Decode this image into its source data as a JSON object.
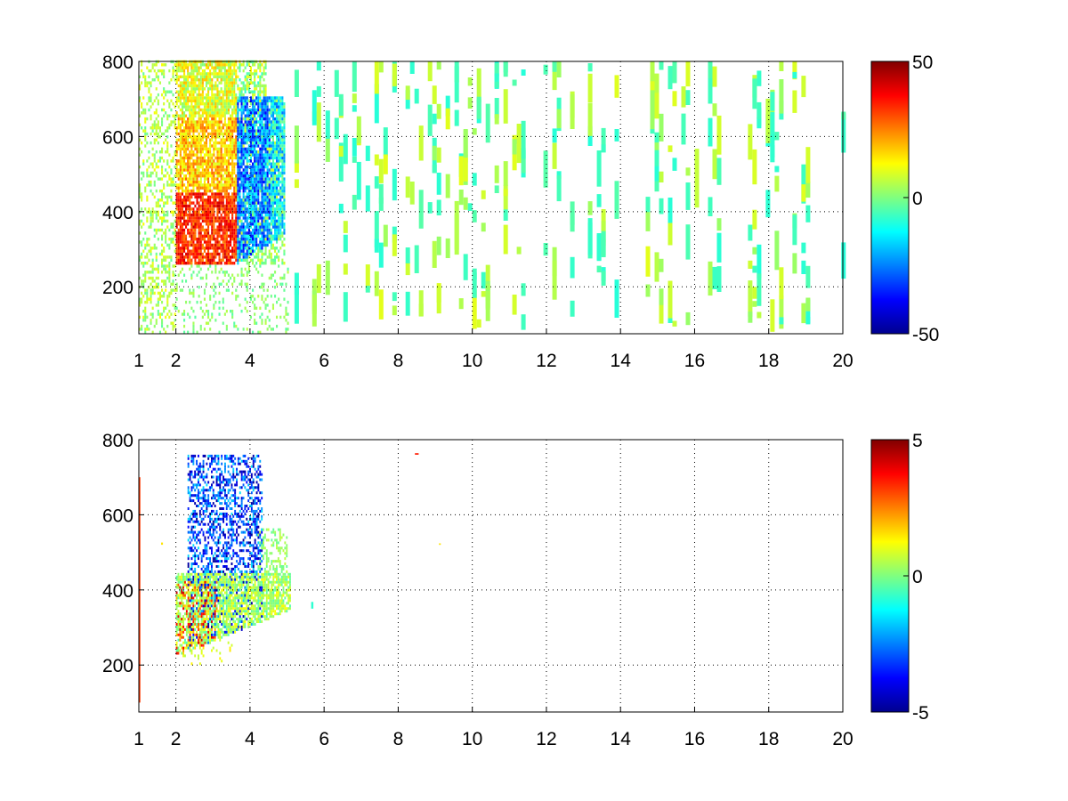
{
  "chart_data": [
    {
      "type": "heatmap",
      "title": "",
      "xlabel": "",
      "ylabel": "",
      "xlim": [
        1,
        20
      ],
      "ylim": [
        75,
        800
      ],
      "x_ticks": [
        1,
        2,
        4,
        6,
        8,
        10,
        12,
        14,
        16,
        18,
        20
      ],
      "y_ticks": [
        200,
        400,
        600,
        800
      ],
      "grid": true,
      "colorbar": {
        "min": -50,
        "max": 50,
        "ticks": [
          50,
          0,
          -50
        ],
        "colormap": "jet"
      },
      "features": [
        {
          "region": "x 2–4, y 260–800",
          "value_range": [
            5,
            40
          ],
          "description": "dense positive (orange/red) band"
        },
        {
          "region": "x 3.5–5, y 260–680",
          "value_range": [
            -40,
            -10
          ],
          "description": "negative (blue/cyan) band"
        },
        {
          "region": "x 5–20, y 75–800",
          "value_range": [
            -10,
            10
          ],
          "description": "sparse near-zero (green/yellow) vertical strips"
        }
      ]
    },
    {
      "type": "heatmap",
      "title": "",
      "xlabel": "",
      "ylabel": "",
      "xlim": [
        1,
        20
      ],
      "ylim": [
        75,
        800
      ],
      "x_ticks": [
        1,
        2,
        4,
        6,
        8,
        10,
        12,
        14,
        16,
        18,
        20
      ],
      "y_ticks": [
        200,
        400,
        600,
        800
      ],
      "grid": true,
      "colorbar": {
        "min": -5,
        "max": 5,
        "ticks": [
          5,
          0,
          -5
        ],
        "colormap": "jet"
      },
      "features": [
        {
          "region": "x 2.2–4, y 380–760",
          "value_range": [
            -5,
            -2
          ],
          "description": "negative (blue) cluster"
        },
        {
          "region": "x 2–3, y 280–420",
          "value_range": [
            1,
            4
          ],
          "description": "positive (orange/red) cluster"
        },
        {
          "region": "x 2–5, y 240–520",
          "value_range": [
            -1,
            1
          ],
          "description": "near-zero (green/yellow) band"
        }
      ]
    }
  ],
  "colors": {
    "jet_stops": [
      "#00008f",
      "#0000ff",
      "#00ffff",
      "#ffff00",
      "#ff0000",
      "#800000"
    ],
    "grid": "#000000"
  }
}
